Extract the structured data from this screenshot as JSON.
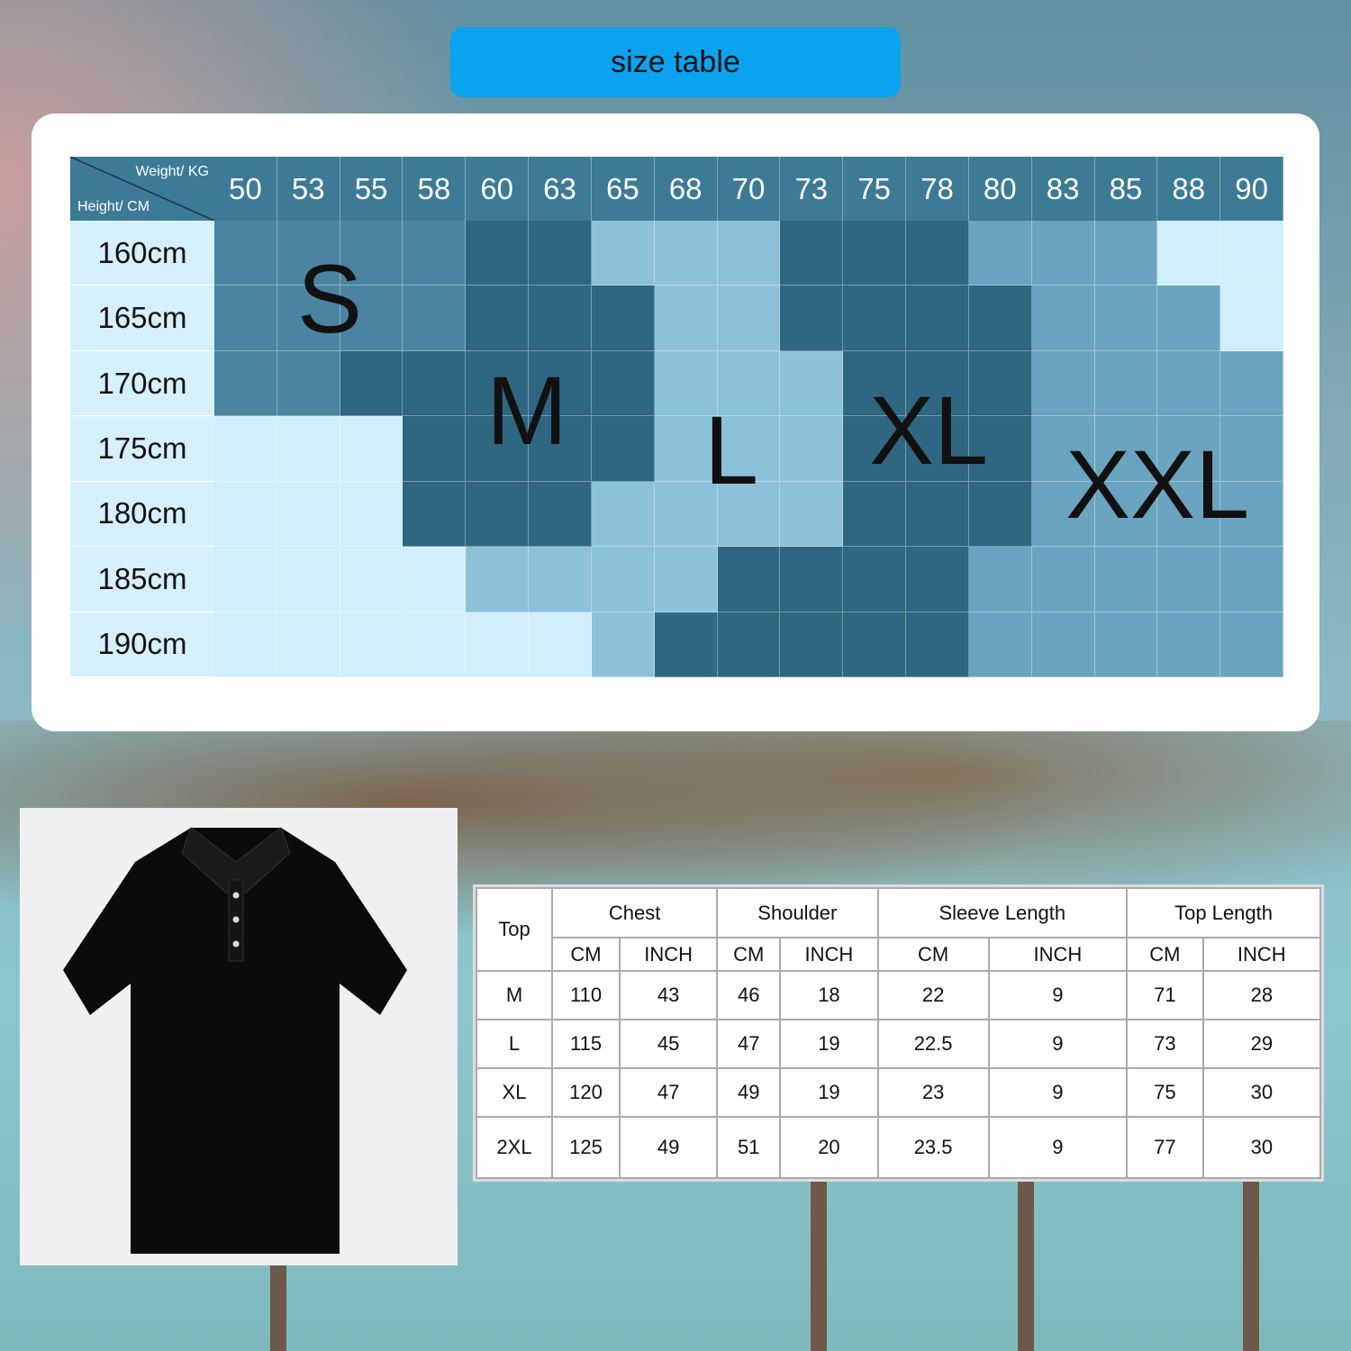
{
  "title": "size table",
  "grid": {
    "corner_weight": "Weight/ KG",
    "corner_height": "Height/ CM",
    "weights": [
      "50",
      "53",
      "55",
      "58",
      "60",
      "63",
      "65",
      "68",
      "70",
      "73",
      "75",
      "78",
      "80",
      "83",
      "85",
      "88",
      "90"
    ],
    "heights": [
      "160cm",
      "165cm",
      "170cm",
      "175cm",
      "180cm",
      "185cm",
      "190cm"
    ],
    "cells": [
      [
        "S",
        "S",
        "S",
        "S",
        "M",
        "M",
        "L",
        "L",
        "L",
        "XL",
        "XL",
        "XL",
        "XXL",
        "XXL",
        "XXL",
        "",
        ""
      ],
      [
        "S",
        "S",
        "S",
        "S",
        "M",
        "M",
        "M",
        "L",
        "L",
        "XL",
        "XL",
        "XL",
        "XL",
        "XXL",
        "XXL",
        "XXL",
        ""
      ],
      [
        "S",
        "S",
        "M",
        "M",
        "M",
        "M",
        "M",
        "L",
        "L",
        "L",
        "XL",
        "XL",
        "XL",
        "XXL",
        "XXL",
        "XXL",
        "XXL"
      ],
      [
        "",
        "",
        "",
        "M",
        "M",
        "M",
        "M",
        "L",
        "L",
        "L",
        "XL",
        "XL",
        "XL",
        "XXL",
        "XXL",
        "XXL",
        "XXL"
      ],
      [
        "",
        "",
        "",
        "M",
        "M",
        "M",
        "L",
        "L",
        "L",
        "L",
        "XL",
        "XL",
        "XL",
        "XXL",
        "XXL",
        "XXL",
        "XXL"
      ],
      [
        "",
        "",
        "",
        "",
        "L",
        "L",
        "L",
        "L",
        "XL",
        "XL",
        "XL",
        "XL",
        "XXL",
        "XXL",
        "XXL",
        "XXL",
        "XXL"
      ],
      [
        "",
        "",
        "",
        "",
        "",
        "",
        "L",
        "XL",
        "XL",
        "XL",
        "XL",
        "XL",
        "XXL",
        "XXL",
        "XXL",
        "XXL",
        "XXL"
      ]
    ],
    "size_labels": {
      "S": "S",
      "M": "M",
      "L": "L",
      "XL": "XL",
      "XXL": "XXL"
    },
    "colors": {
      "S": "#4b84a0",
      "M": "#2f6681",
      "L": "#8dc1da",
      "XL": "#2f6681",
      "XXL": "#6ba4c0",
      "none": "#d0eefb",
      "header": "#3d7a96"
    }
  },
  "measure": {
    "top": "Top",
    "groups": [
      "Chest",
      "Shoulder",
      "Sleeve Length",
      "Top Length"
    ],
    "units": [
      "CM",
      "INCH",
      "CM",
      "INCH",
      "CM",
      "INCH",
      "CM",
      "INCH"
    ],
    "rows": [
      [
        "M",
        "110",
        "43",
        "46",
        "18",
        "22",
        "9",
        "71",
        "28"
      ],
      [
        "L",
        "115",
        "45",
        "47",
        "19",
        "22.5",
        "9",
        "73",
        "29"
      ],
      [
        "XL",
        "120",
        "47",
        "49",
        "19",
        "23",
        "9",
        "75",
        "30"
      ],
      [
        "2XL",
        "125",
        "49",
        "51",
        "20",
        "23.5",
        "9",
        "77",
        "30"
      ]
    ]
  },
  "accent": "#0aa3f0"
}
